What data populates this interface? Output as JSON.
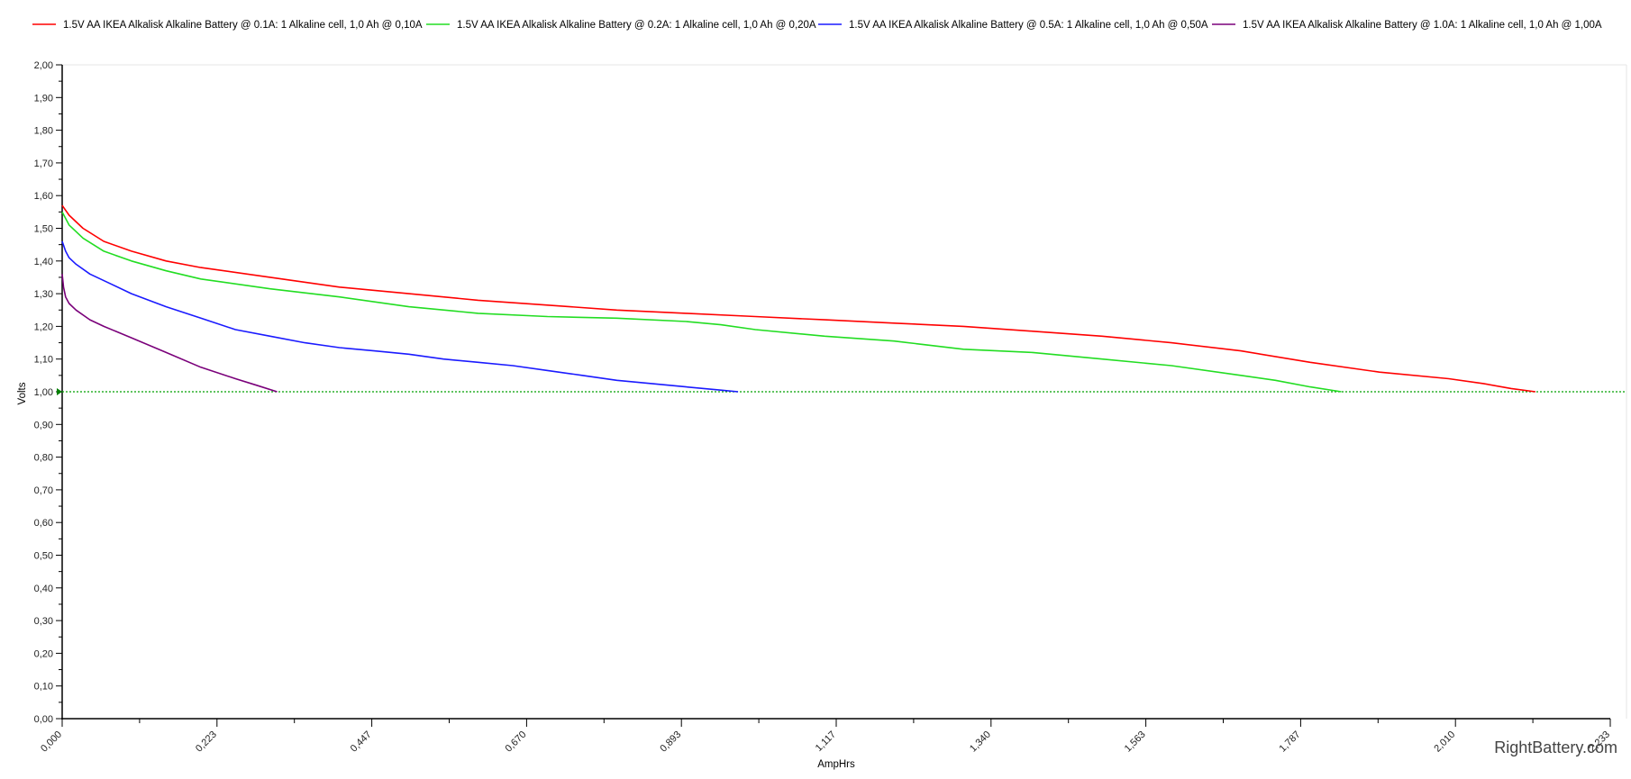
{
  "chart_data": {
    "type": "line",
    "xlabel": "AmpHrs",
    "ylabel": "Volts",
    "xlim": [
      0,
      2.233
    ],
    "ylim": [
      0,
      2.0
    ],
    "x_ticks": [
      "0,000",
      "0,223",
      "0,447",
      "0,670",
      "0,893",
      "1,117",
      "1,340",
      "1,563",
      "1,787",
      "2,010",
      "2,233"
    ],
    "y_ticks": [
      "0,00",
      "0,10",
      "0,20",
      "0,30",
      "0,40",
      "0,50",
      "0,60",
      "0,70",
      "0,80",
      "0,90",
      "1,00",
      "1,10",
      "1,20",
      "1,30",
      "1,40",
      "1,50",
      "1,60",
      "1,70",
      "1,80",
      "1,90",
      "2,00"
    ],
    "reference_line": {
      "y": 1.0,
      "color": "#00a000",
      "style": "dotted"
    },
    "watermark": "RightBattery.com",
    "legend_position": "top",
    "series": [
      {
        "name": "1.5V AA IKEA Alkalisk Alkaline Battery @ 0.1A: 1 Alkaline cell, 1,0 Ah @ 0,10A",
        "color": "#ff0000",
        "x": [
          0.0,
          0.01,
          0.03,
          0.06,
          0.1,
          0.15,
          0.2,
          0.3,
          0.4,
          0.5,
          0.6,
          0.7,
          0.8,
          0.9,
          1.0,
          1.1,
          1.2,
          1.3,
          1.4,
          1.5,
          1.6,
          1.7,
          1.8,
          1.9,
          2.0,
          2.05,
          2.09,
          2.125
        ],
        "y": [
          1.57,
          1.54,
          1.5,
          1.46,
          1.43,
          1.4,
          1.38,
          1.35,
          1.32,
          1.3,
          1.28,
          1.265,
          1.25,
          1.24,
          1.23,
          1.22,
          1.21,
          1.2,
          1.185,
          1.17,
          1.15,
          1.125,
          1.09,
          1.06,
          1.04,
          1.025,
          1.01,
          1.0
        ]
      },
      {
        "name": "1.5V AA IKEA Alkalisk Alkaline Battery @ 0.2A: 1 Alkaline cell, 1,0 Ah @ 0,20A",
        "color": "#22dd22",
        "x": [
          0.0,
          0.01,
          0.03,
          0.06,
          0.1,
          0.15,
          0.2,
          0.3,
          0.4,
          0.5,
          0.6,
          0.7,
          0.8,
          0.9,
          0.95,
          1.0,
          1.1,
          1.2,
          1.3,
          1.4,
          1.5,
          1.6,
          1.7,
          1.75,
          1.8,
          1.845
        ],
        "y": [
          1.55,
          1.51,
          1.47,
          1.43,
          1.4,
          1.37,
          1.345,
          1.315,
          1.29,
          1.26,
          1.24,
          1.23,
          1.225,
          1.215,
          1.205,
          1.19,
          1.17,
          1.155,
          1.13,
          1.12,
          1.1,
          1.08,
          1.05,
          1.035,
          1.015,
          1.0
        ]
      },
      {
        "name": "1.5V AA IKEA Alkalisk Alkaline Battery @ 0.5A: 1 Alkaline cell, 1,0 Ah @ 0,50A",
        "color": "#1a1aff",
        "x": [
          0.0,
          0.005,
          0.01,
          0.02,
          0.04,
          0.07,
          0.1,
          0.15,
          0.2,
          0.25,
          0.3,
          0.35,
          0.4,
          0.45,
          0.5,
          0.55,
          0.6,
          0.65,
          0.7,
          0.75,
          0.8,
          0.85,
          0.9,
          0.95,
          0.975
        ],
        "y": [
          1.46,
          1.43,
          1.41,
          1.39,
          1.36,
          1.33,
          1.3,
          1.26,
          1.225,
          1.19,
          1.17,
          1.15,
          1.135,
          1.125,
          1.115,
          1.1,
          1.09,
          1.08,
          1.065,
          1.05,
          1.035,
          1.025,
          1.015,
          1.005,
          1.0
        ]
      },
      {
        "name": "1.5V AA IKEA Alkalisk Alkaline Battery @ 1.0A: 1 Alkaline cell, 1,0 Ah @ 1,00A",
        "color": "#7a007a",
        "x": [
          0.0,
          0.002,
          0.005,
          0.01,
          0.02,
          0.04,
          0.06,
          0.1,
          0.15,
          0.2,
          0.25,
          0.28,
          0.31
        ],
        "y": [
          1.36,
          1.32,
          1.29,
          1.27,
          1.25,
          1.22,
          1.2,
          1.165,
          1.12,
          1.075,
          1.04,
          1.02,
          1.0
        ]
      }
    ]
  }
}
